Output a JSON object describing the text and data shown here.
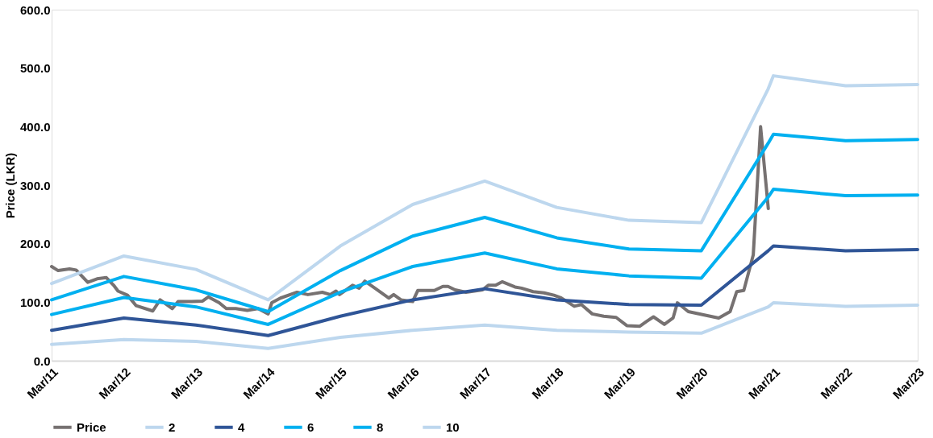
{
  "chart_data": {
    "type": "line",
    "ylabel": "Price (LKR)",
    "xlim": [
      "2011-03",
      "2023-03"
    ],
    "ylim": [
      0,
      600
    ],
    "xticks": [
      {
        "value": "2011-03",
        "label": "Mar/11"
      },
      {
        "value": "2012-03",
        "label": "Mar/12"
      },
      {
        "value": "2013-03",
        "label": "Mar/13"
      },
      {
        "value": "2014-03",
        "label": "Mar/14"
      },
      {
        "value": "2015-03",
        "label": "Mar/15"
      },
      {
        "value": "2016-03",
        "label": "Mar/16"
      },
      {
        "value": "2017-03",
        "label": "Mar/17"
      },
      {
        "value": "2018-03",
        "label": "Mar/18"
      },
      {
        "value": "2019-03",
        "label": "Mar/19"
      },
      {
        "value": "2020-03",
        "label": "Mar/20"
      },
      {
        "value": "2021-03",
        "label": "Mar/21"
      },
      {
        "value": "2022-03",
        "label": "Mar/22"
      },
      {
        "value": "2023-03",
        "label": "Mar/23"
      }
    ],
    "yticks": [
      {
        "value": 0,
        "label": "0.0"
      },
      {
        "value": 100,
        "label": "100.0"
      },
      {
        "value": 200,
        "label": "200.0"
      },
      {
        "value": 300,
        "label": "300.0"
      },
      {
        "value": 400,
        "label": "400.0"
      },
      {
        "value": 500,
        "label": "500.0"
      },
      {
        "value": 600,
        "label": "600.0"
      }
    ],
    "grid": false,
    "legend": "bottom",
    "marker": "none",
    "line_style": "solid",
    "series": [
      {
        "name": "Price",
        "color": "#767171",
        "x": [
          "2011-03-01",
          "2011-04-03",
          "2011-05-31",
          "2011-07-03",
          "2011-08-31",
          "2011-10-17",
          "2011-12-03",
          "2012-01-09",
          "2012-01-31",
          "2012-03-19",
          "2012-05-02",
          "2012-07-25",
          "2012-08-31",
          "2012-11-01",
          "2012-11-30",
          "2013-02-07",
          "2013-04-03",
          "2013-05-02",
          "2013-06-26",
          "2013-08-01",
          "2013-09-18",
          "2013-11-15",
          "2014-01-09",
          "2014-03-01",
          "2014-03-19",
          "2014-05-02",
          "2014-07-25",
          "2014-09-18",
          "2014-11-30",
          "2015-01-09",
          "2015-02-07",
          "2015-02-25",
          "2015-05-02",
          "2015-06-04",
          "2015-07-03",
          "2015-08-23",
          "2015-11-01",
          "2015-11-26",
          "2016-01-02",
          "2016-03-01",
          "2016-03-27",
          "2016-06-19",
          "2016-08-01",
          "2016-08-27",
          "2016-10-02",
          "2016-11-26",
          "2017-02-18",
          "2017-03-19",
          "2017-04-25",
          "2017-05-28",
          "2017-08-01",
          "2017-09-03",
          "2017-11-01",
          "2017-12-26",
          "2018-02-14",
          "2018-03-19",
          "2018-04-17",
          "2018-05-28",
          "2018-07-03",
          "2018-08-27",
          "2018-10-24",
          "2018-12-26",
          "2019-02-18",
          "2019-04-25",
          "2019-05-28",
          "2019-07-03",
          "2019-08-27",
          "2019-10-10",
          "2019-11-01",
          "2019-12-26",
          "2020-05-28",
          "2020-07-25",
          "2020-08-27",
          "2020-10-02",
          "2020-11-19",
          "2020-12-26",
          "2021-02-03"
        ],
        "values": [
          161,
          154,
          157,
          155,
          134,
          140,
          142,
          129,
          119,
          112,
          94,
          85,
          104,
          89,
          101,
          101,
          102,
          109,
          99,
          89,
          89,
          86,
          89,
          80,
          99,
          107,
          117,
          113,
          117,
          113,
          119,
          113,
          129,
          124,
          136,
          124,
          107,
          113,
          104,
          101,
          120,
          120,
          127,
          127,
          121,
          117,
          121,
          129,
          129,
          135,
          126,
          124,
          118,
          116,
          112,
          108,
          102,
          93,
          96,
          80,
          76,
          74,
          60,
          59,
          67,
          75,
          62,
          73,
          99,
          84,
          73,
          84,
          118,
          120,
          181,
          400,
          260
        ]
      },
      {
        "name": "2",
        "color": "#bdd7ee",
        "x": [
          "2011-03",
          "2012-03",
          "2013-03",
          "2014-03",
          "2015-03",
          "2016-03",
          "2017-03",
          "2018-03",
          "2019-03",
          "2020-03",
          "2021-02-03",
          "2021-03",
          "2022-03",
          "2023-03"
        ],
        "values": [
          28,
          36,
          33,
          21,
          40,
          52,
          61,
          52,
          49,
          47,
          92,
          99,
          93,
          95
        ]
      },
      {
        "name": "4",
        "color": "#2f5597",
        "x": [
          "2011-03",
          "2012-03",
          "2013-03",
          "2014-03",
          "2015-03",
          "2016-03",
          "2017-03",
          "2018-03",
          "2019-03",
          "2020-03",
          "2021-02-03",
          "2021-03",
          "2022-03",
          "2023-03"
        ],
        "values": [
          52,
          73,
          61,
          43,
          76,
          104,
          123,
          104,
          96,
          95,
          188,
          196,
          188,
          190
        ]
      },
      {
        "name": "6",
        "color": "#00b0f0",
        "x": [
          "2011-03",
          "2012-03",
          "2013-03",
          "2014-03",
          "2015-03",
          "2016-03",
          "2017-03",
          "2018-03",
          "2019-03",
          "2020-03",
          "2021-02-03",
          "2021-03",
          "2022-03",
          "2023-03"
        ],
        "values": [
          79,
          108,
          92,
          62,
          117,
          161,
          184,
          157,
          145,
          141,
          280,
          293,
          282,
          283
        ]
      },
      {
        "name": "8",
        "color": "#00b0f0",
        "x": [
          "2011-03",
          "2012-03",
          "2013-03",
          "2014-03",
          "2015-03",
          "2016-03",
          "2017-03",
          "2018-03",
          "2019-03",
          "2020-03",
          "2021-02-03",
          "2021-03",
          "2022-03",
          "2023-03"
        ],
        "values": [
          104,
          144,
          121,
          84,
          154,
          213,
          245,
          210,
          191,
          188,
          372,
          387,
          376,
          378
        ]
      },
      {
        "name": "10",
        "color": "#bdd7ee",
        "x": [
          "2011-03",
          "2012-03",
          "2013-03",
          "2014-03",
          "2015-03",
          "2016-03",
          "2017-03",
          "2018-03",
          "2019-03",
          "2020-03",
          "2021-02-03",
          "2021-03",
          "2022-03",
          "2023-03"
        ],
        "values": [
          132,
          179,
          156,
          104,
          196,
          267,
          307,
          262,
          240,
          236,
          465,
          487,
          470,
          472
        ]
      }
    ]
  }
}
